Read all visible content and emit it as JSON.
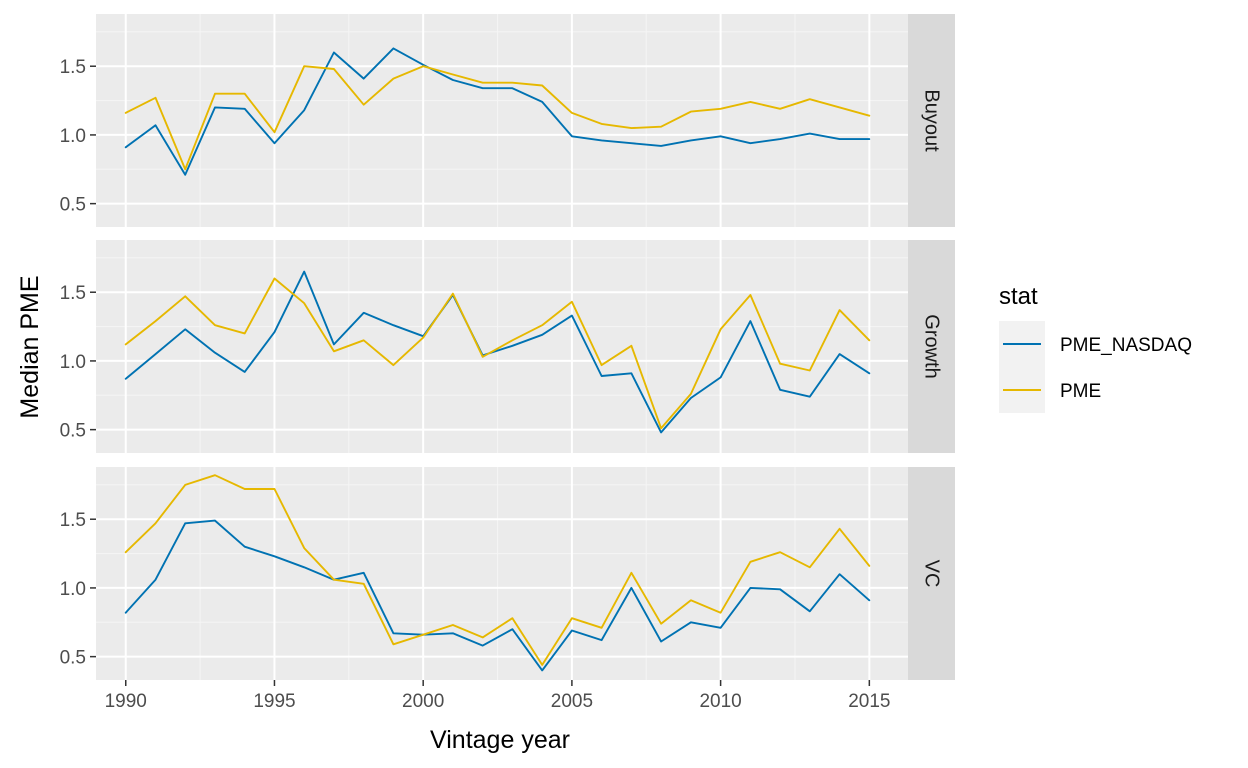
{
  "chart_data": {
    "type": "line",
    "xlabel": "Vintage year",
    "ylabel": "Median PME",
    "x": [
      1990,
      1991,
      1992,
      1993,
      1994,
      1995,
      1996,
      1997,
      1998,
      1999,
      2000,
      2001,
      2002,
      2003,
      2004,
      2005,
      2006,
      2007,
      2008,
      2009,
      2010,
      2011,
      2012,
      2013,
      2014,
      2015
    ],
    "x_ticks": [
      "1990",
      "1995",
      "2000",
      "2005",
      "2010",
      "2015"
    ],
    "y_ticks": [
      "0.5",
      "1.0",
      "1.5"
    ],
    "xlim": [
      1989,
      2016.3
    ],
    "ylim": [
      0.33,
      1.88
    ],
    "grid": true,
    "legend": {
      "title": "stat",
      "position": "right",
      "entries": [
        {
          "label": "PME_NASDAQ",
          "color": "#0072B2"
        },
        {
          "label": "PME",
          "color": "#E6B800"
        }
      ]
    },
    "facets": [
      {
        "label": "Buyout",
        "series": [
          {
            "name": "PME_NASDAQ",
            "values": [
              0.91,
              1.07,
              0.71,
              1.2,
              1.19,
              0.94,
              1.18,
              1.6,
              1.41,
              1.63,
              1.51,
              1.4,
              1.34,
              1.34,
              1.24,
              0.99,
              0.96,
              0.94,
              0.92,
              0.96,
              0.99,
              0.94,
              0.97,
              1.01,
              0.97,
              0.97
            ]
          },
          {
            "name": "PME",
            "values": [
              1.16,
              1.27,
              0.75,
              1.3,
              1.3,
              1.02,
              1.5,
              1.48,
              1.22,
              1.41,
              1.5,
              1.44,
              1.38,
              1.38,
              1.36,
              1.16,
              1.08,
              1.05,
              1.06,
              1.17,
              1.19,
              1.24,
              1.19,
              1.26,
              1.2,
              1.14
            ]
          }
        ]
      },
      {
        "label": "Growth",
        "series": [
          {
            "name": "PME_NASDAQ",
            "values": [
              0.87,
              1.05,
              1.23,
              1.06,
              0.92,
              1.21,
              1.65,
              1.12,
              1.35,
              1.26,
              1.18,
              1.48,
              1.04,
              1.11,
              1.19,
              1.33,
              0.89,
              0.91,
              0.48,
              0.73,
              0.88,
              1.29,
              0.79,
              0.74,
              1.05,
              0.91
            ]
          },
          {
            "name": "PME",
            "values": [
              1.12,
              1.29,
              1.47,
              1.26,
              1.2,
              1.6,
              1.42,
              1.07,
              1.15,
              0.97,
              1.17,
              1.49,
              1.03,
              1.15,
              1.26,
              1.43,
              0.97,
              1.11,
              0.51,
              0.76,
              1.23,
              1.48,
              0.98,
              0.93,
              1.37,
              1.15
            ]
          }
        ]
      },
      {
        "label": "VC",
        "series": [
          {
            "name": "PME_NASDAQ",
            "values": [
              0.82,
              1.06,
              1.47,
              1.49,
              1.3,
              1.23,
              1.15,
              1.06,
              1.11,
              0.67,
              0.66,
              0.67,
              0.58,
              0.7,
              0.4,
              0.69,
              0.62,
              1.0,
              0.61,
              0.75,
              0.71,
              1.0,
              0.99,
              0.83,
              1.1,
              0.91
            ]
          },
          {
            "name": "PME",
            "values": [
              1.26,
              1.47,
              1.75,
              1.82,
              1.72,
              1.72,
              1.29,
              1.06,
              1.03,
              0.59,
              0.66,
              0.73,
              0.64,
              0.78,
              0.44,
              0.78,
              0.71,
              1.11,
              0.74,
              0.91,
              0.82,
              1.19,
              1.26,
              1.15,
              1.43,
              1.16
            ]
          }
        ]
      }
    ]
  }
}
